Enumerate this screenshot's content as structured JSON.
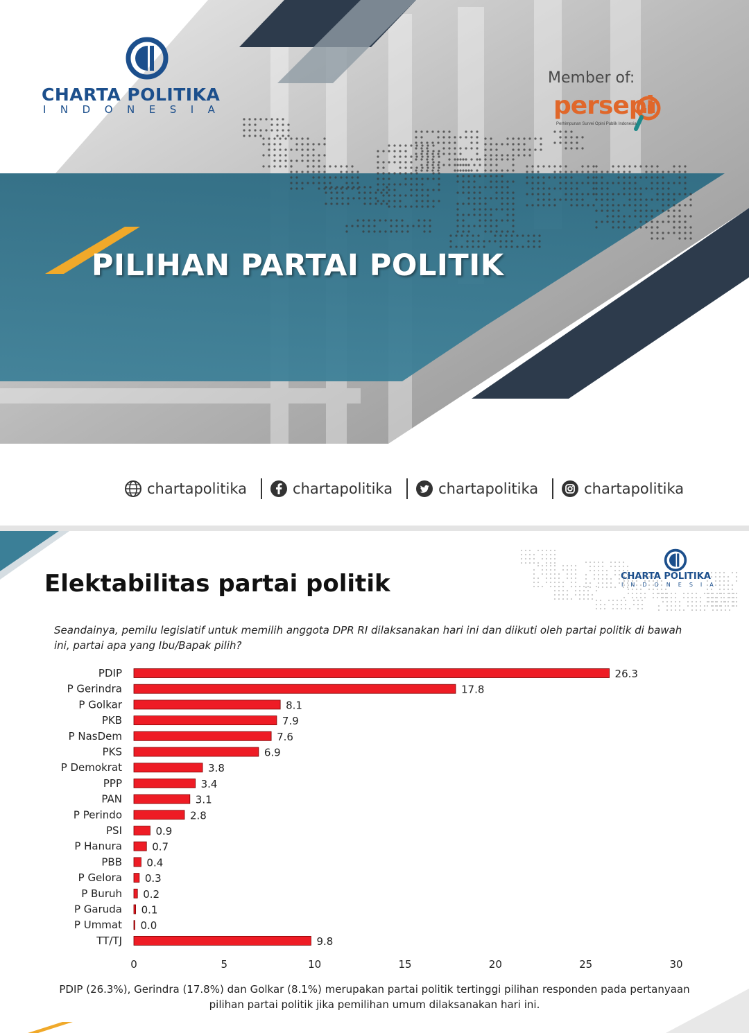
{
  "slide1": {
    "brand": {
      "name": "CHARTA POLITIKA",
      "sub": "INDONESIA"
    },
    "member_label": "Member of:",
    "member_org": {
      "name": "persepi",
      "tagline": "Perhimpunan Survei Opini Publik Indonesia"
    },
    "title": "PILIHAN PARTAI POLITIK",
    "social": [
      {
        "icon": "globe-icon",
        "handle": "chartapolitika"
      },
      {
        "icon": "facebook-icon",
        "handle": "chartapolitika"
      },
      {
        "icon": "twitter-icon",
        "handle": "chartapolitika"
      },
      {
        "icon": "instagram-icon",
        "handle": "chartapolitika"
      }
    ],
    "colors": {
      "teal": "#2e6f86",
      "navy": "#2d3b4c",
      "gold": "#f0a92a",
      "brand_blue": "#1c4f8c",
      "persepi_orange": "#e0672a"
    }
  },
  "slide2": {
    "brand": {
      "name": "CHARTA POLITIKA",
      "sub": "INDONESIA"
    },
    "title": "Elektabilitas partai politik",
    "question": "Seandainya, pemilu legislatif untuk memilih anggota DPR RI dilaksanakan hari ini dan diikuti oleh partai politik di bawah ini, partai apa yang Ibu/Bapak pilih?",
    "summary": "PDIP (26.3%), Gerindra (17.8%) dan Golkar (8.1%) merupakan partai politik tertinggi pilihan responden pada pertanyaan pilihan partai politik jika pemilihan umum dilaksanakan hari ini."
  },
  "chart_data": {
    "type": "bar",
    "orientation": "horizontal",
    "categories": [
      "PDIP",
      "P Gerindra",
      "P Golkar",
      "PKB",
      "P NasDem",
      "PKS",
      "P Demokrat",
      "PPP",
      "PAN",
      "P Perindo",
      "PSI",
      "P Hanura",
      "PBB",
      "P Gelora",
      "P Buruh",
      "P Garuda",
      "P Ummat",
      "TT/TJ"
    ],
    "values": [
      26.3,
      17.8,
      8.1,
      7.9,
      7.6,
      6.9,
      3.8,
      3.4,
      3.1,
      2.8,
      0.9,
      0.7,
      0.4,
      0.3,
      0.2,
      0.1,
      0.0,
      9.8
    ],
    "xlim": [
      0,
      30
    ],
    "xticks": [
      0,
      5,
      10,
      15,
      20,
      25,
      30
    ],
    "bar_color": "#ee1c25",
    "grid": false,
    "legend": "none"
  }
}
